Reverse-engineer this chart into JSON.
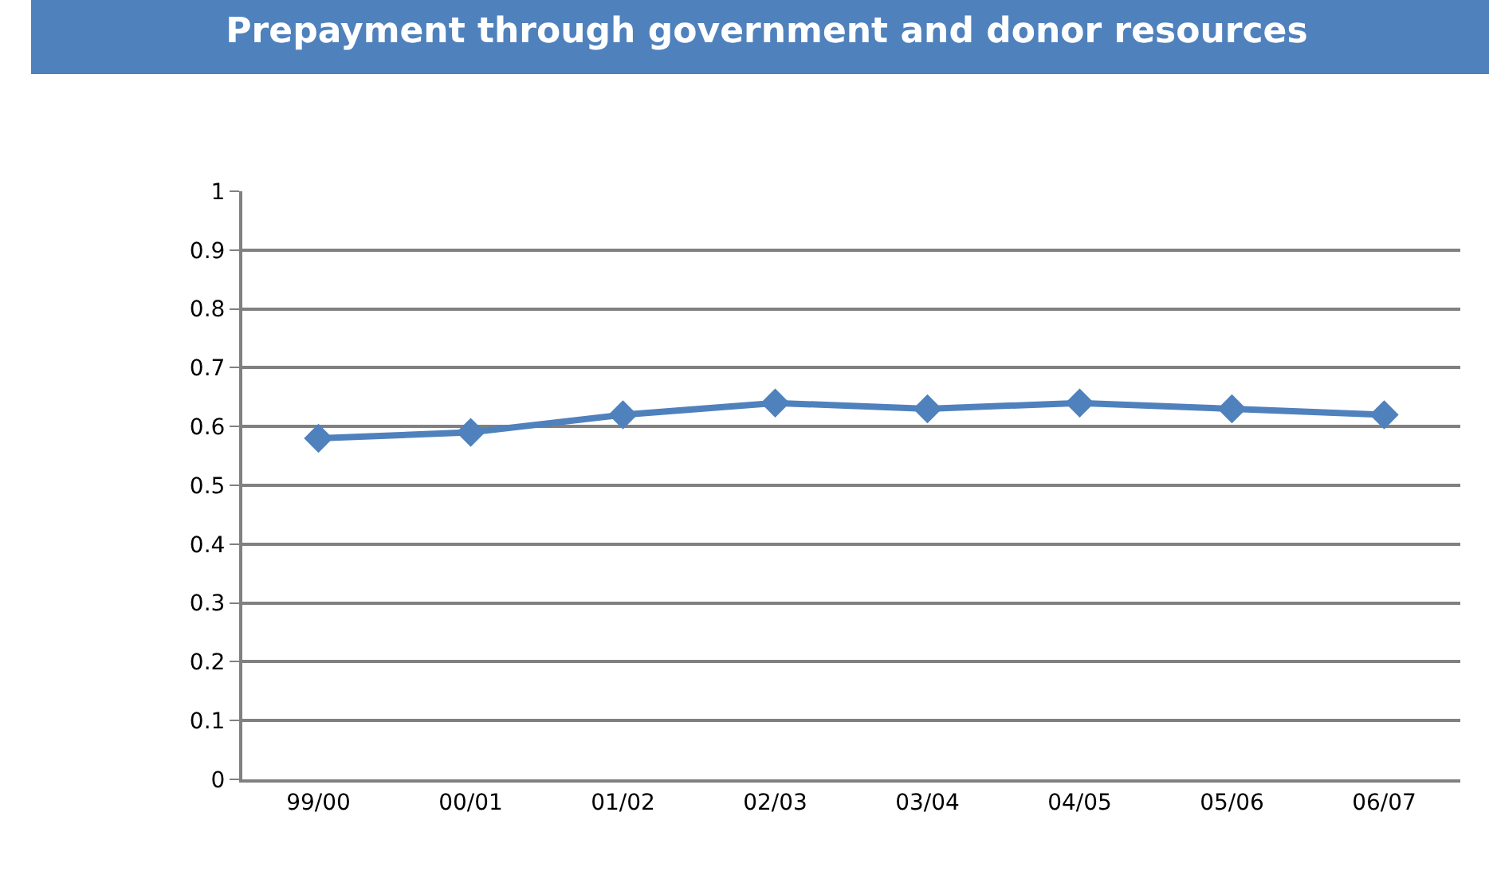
{
  "chart_data": {
    "type": "line",
    "title": "Prepayment through government and donor resources",
    "categories": [
      "99/00",
      "00/01",
      "01/02",
      "02/03",
      "03/04",
      "04/05",
      "05/06",
      "06/07"
    ],
    "series": [
      {
        "color": "#4f81bd",
        "values": [
          0.58,
          0.59,
          0.62,
          0.64,
          0.63,
          0.64,
          0.63,
          0.62
        ]
      }
    ],
    "ylim": [
      0,
      1
    ],
    "yticks": [
      0,
      0.1,
      0.2,
      0.3,
      0.4,
      0.5,
      0.6,
      0.7,
      0.8,
      0.9,
      1
    ],
    "grid": "y",
    "marker": "diamond",
    "line_style": "solid"
  }
}
